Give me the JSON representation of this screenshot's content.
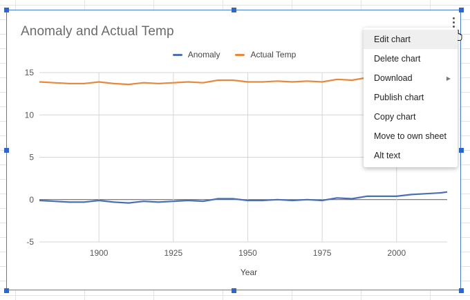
{
  "chart": {
    "title": "Anomaly and Actual Temp",
    "legend": [
      {
        "label": "Anomaly",
        "color": "#4a6fb5"
      },
      {
        "label": "Actual Temp",
        "color": "#e8883c"
      }
    ]
  },
  "chart_data": {
    "type": "line",
    "title": "Anomaly and Actual Temp",
    "xlabel": "Year",
    "ylabel": "",
    "xlim": [
      1880,
      2017
    ],
    "ylim": [
      -5,
      15
    ],
    "xticks": [
      "1900",
      "1925",
      "1950",
      "1975",
      "2000"
    ],
    "yticks": [
      "15",
      "10",
      "5",
      "0",
      "-5"
    ],
    "grid": true,
    "legend_position": "top",
    "x": [
      1880,
      1885,
      1890,
      1895,
      1900,
      1905,
      1910,
      1915,
      1920,
      1925,
      1930,
      1935,
      1940,
      1945,
      1950,
      1955,
      1960,
      1965,
      1970,
      1975,
      1980,
      1985,
      1990,
      1995,
      2000,
      2005,
      2010,
      2015,
      2017
    ],
    "series": [
      {
        "name": "Anomaly",
        "color": "#4a6fb5",
        "values": [
          -0.1,
          -0.2,
          -0.3,
          -0.3,
          -0.1,
          -0.3,
          -0.4,
          -0.2,
          -0.3,
          -0.2,
          -0.1,
          -0.2,
          0.1,
          0.1,
          -0.1,
          -0.1,
          0.0,
          -0.1,
          0.0,
          -0.1,
          0.2,
          0.1,
          0.4,
          0.4,
          0.4,
          0.6,
          0.7,
          0.8,
          0.9
        ]
      },
      {
        "name": "Actual Temp",
        "color": "#e8883c",
        "values": [
          13.9,
          13.8,
          13.7,
          13.7,
          13.9,
          13.7,
          13.6,
          13.8,
          13.7,
          13.8,
          13.9,
          13.8,
          14.1,
          14.1,
          13.9,
          13.9,
          14.0,
          13.9,
          14.0,
          13.9,
          14.2,
          14.1,
          14.4,
          14.4,
          14.4,
          14.6,
          14.7,
          14.8,
          14.9
        ]
      }
    ]
  },
  "menu": {
    "items": [
      {
        "label": "Edit chart",
        "arrow": ""
      },
      {
        "label": "Delete chart",
        "arrow": ""
      },
      {
        "label": "Download",
        "arrow": "▶"
      },
      {
        "label": "Publish chart",
        "arrow": ""
      },
      {
        "label": "Copy chart",
        "arrow": ""
      },
      {
        "label": "Move to own sheet",
        "arrow": ""
      },
      {
        "label": "Alt text",
        "arrow": ""
      }
    ]
  }
}
